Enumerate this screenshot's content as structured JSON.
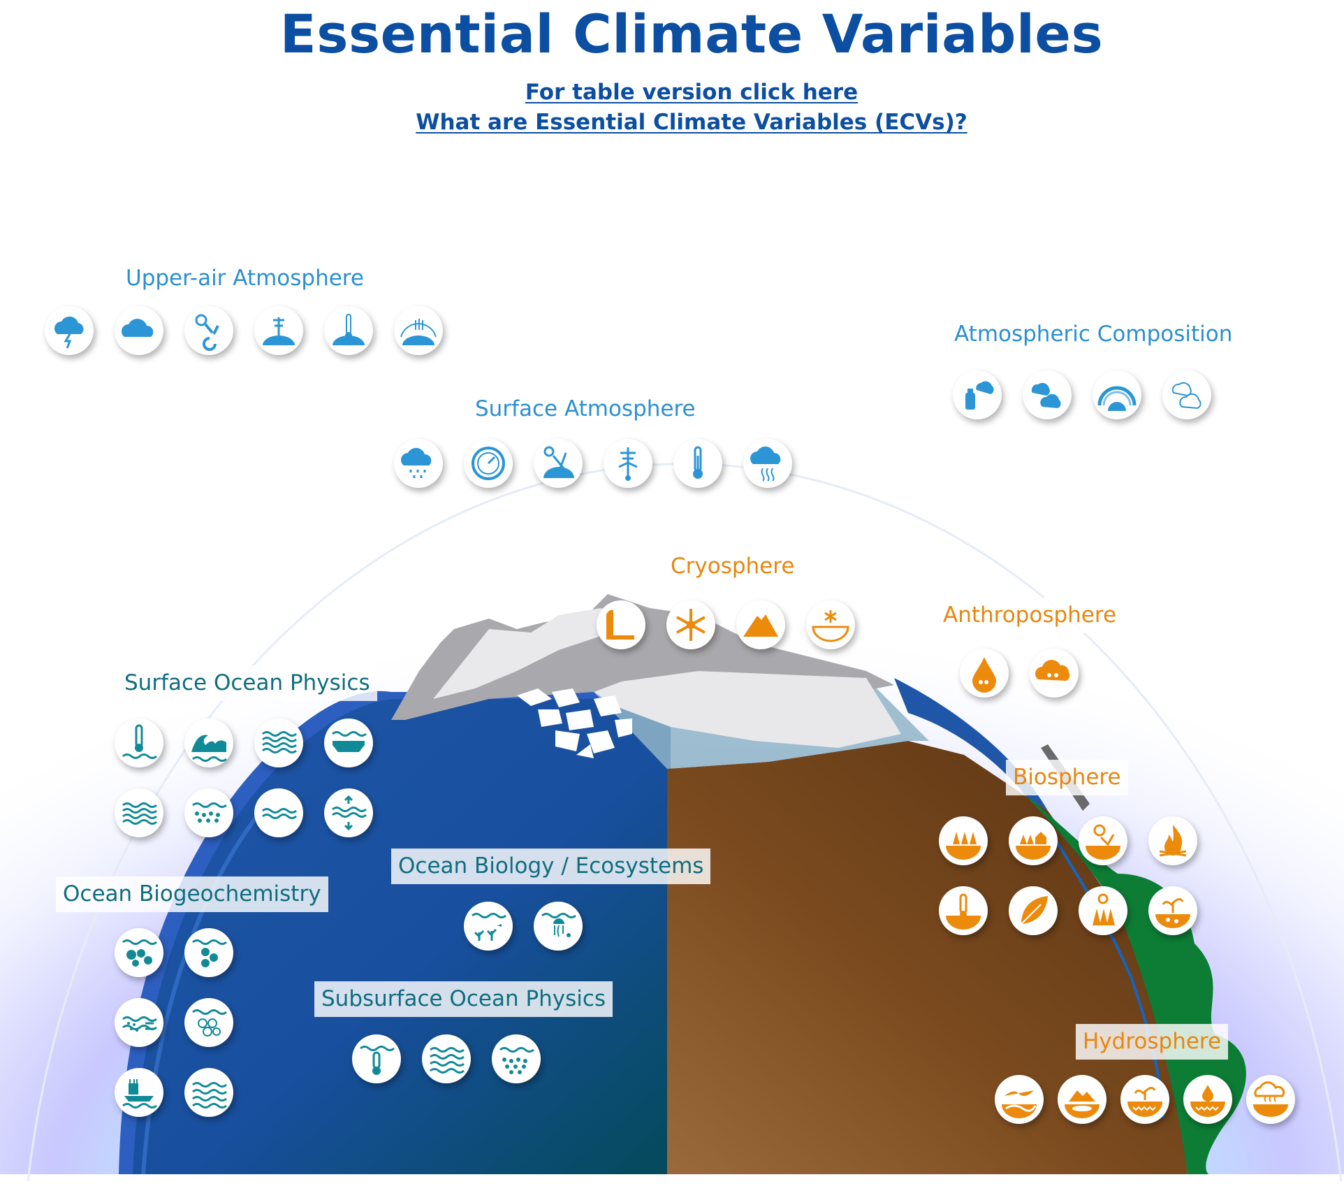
{
  "page": {
    "title": "Essential Climate Variables",
    "link_table": "For table version click here",
    "link_ecv": "What are Essential Climate Variables (ECVs)?"
  },
  "colors": {
    "atmosphere_icon": "#2b95d6",
    "ocean_icon": "#118a98",
    "land_icon": "#ec8a0c",
    "title": "#0b4ea2"
  },
  "groups": {
    "upper_air": {
      "label": "Upper-air Atmosphere",
      "icons": [
        "lightning-cloud-icon",
        "cloud-icon",
        "water-vapour-wind-icon",
        "upper-wind-icon",
        "upper-temperature-icon",
        "earth-radiation-budget-icon"
      ]
    },
    "atmospheric_composition": {
      "label": "Atmospheric Composition",
      "icons": [
        "aerosol-spray-icon",
        "greenhouse-gas-cloud-icon",
        "ozone-layer-icon",
        "precursors-cloud-icon"
      ]
    },
    "surface_atmosphere": {
      "label": "Surface Atmosphere",
      "icons": [
        "precipitation-icon",
        "pressure-gauge-icon",
        "surface-radiation-icon",
        "wind-vane-icon",
        "thermometer-icon",
        "water-vapour-icon"
      ]
    },
    "cryosphere": {
      "label": "Cryosphere",
      "icons": [
        "glacier-icon",
        "snowflake-icon",
        "ice-sheet-icon",
        "permafrost-icon"
      ]
    },
    "anthroposphere": {
      "label": "Anthroposphere",
      "icons": [
        "water-use-icon",
        "ghg-fluxes-icon"
      ]
    },
    "surface_ocean_physics": {
      "label": "Surface Ocean Physics",
      "icons": [
        "sea-surface-temperature-icon",
        "sea-state-icon",
        "surface-currents-icon",
        "sea-ice-icon",
        "surface-stress-icon",
        "sea-surface-salinity-icon",
        "sea-level-icon",
        "heat-flux-icon"
      ]
    },
    "ocean_biogeochemistry": {
      "label": "Ocean Biogeochemistry",
      "icons": [
        "inorganic-carbon-icon",
        "oxygen-icon",
        "nutrients-icon",
        "nitrous-oxide-icon",
        "transient-tracers-icon",
        "ocean-colour-icon"
      ]
    },
    "ocean_biology": {
      "label": "Ocean Biology / Ecosystems",
      "icons": [
        "marine-habitat-icon",
        "plankton-icon"
      ]
    },
    "subsurface_ocean_physics": {
      "label": "Subsurface Ocean Physics",
      "icons": [
        "subsurface-temperature-icon",
        "subsurface-currents-icon",
        "subsurface-salinity-icon"
      ]
    },
    "biosphere": {
      "label": "Biosphere",
      "icons": [
        "above-ground-biomass-icon",
        "land-cover-icon",
        "albedo-icon",
        "fire-icon",
        "land-surface-temperature-icon",
        "leaf-area-index-icon",
        "fapar-icon",
        "soil-carbon-icon"
      ]
    },
    "hydrosphere": {
      "label": "Hydrosphere",
      "icons": [
        "river-discharge-icon",
        "lakes-icon",
        "groundwater-icon",
        "soil-moisture-icon",
        "evaporation-icon"
      ]
    }
  }
}
